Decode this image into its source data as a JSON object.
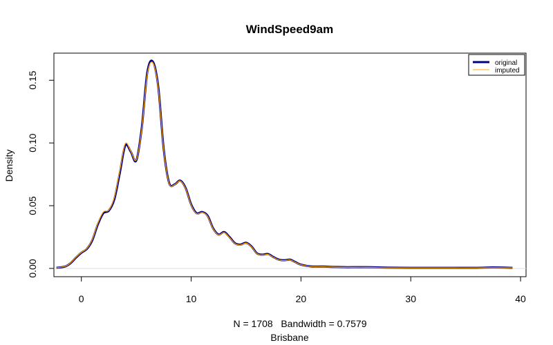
{
  "chart_data": {
    "type": "line",
    "title": "WindSpeed9am",
    "xlabel": "N = 1708   Bandwidth = 0.7579",
    "subtitle": "Brisbane",
    "ylabel": "Density",
    "xlim": [
      -2.5,
      40.5
    ],
    "ylim": [
      -0.0066,
      0.1716
    ],
    "x_ticks": [
      0,
      10,
      20,
      30,
      40
    ],
    "y_ticks": [
      0.0,
      0.05,
      0.1,
      0.15
    ],
    "y_tick_labels": [
      "0.00",
      "0.05",
      "0.10",
      "0.15"
    ],
    "grid": false,
    "legend_position": "top-right",
    "colors": {
      "original": "#000080",
      "imputed": "#ffa500"
    },
    "series": [
      {
        "name": "original",
        "x": [
          -2.27,
          -1.5,
          -1.0,
          -0.5,
          0.0,
          0.5,
          1.0,
          1.5,
          2.0,
          2.5,
          3.0,
          3.5,
          4.0,
          4.5,
          5.0,
          5.5,
          6.0,
          6.5,
          7.0,
          7.5,
          8.0,
          8.5,
          9.0,
          9.5,
          10.0,
          10.5,
          11.0,
          11.5,
          12.0,
          12.5,
          13.0,
          13.5,
          14.0,
          14.5,
          15.0,
          15.5,
          16.0,
          16.5,
          17.0,
          17.5,
          18.0,
          18.5,
          19.0,
          19.5,
          20.0,
          21.0,
          22.0,
          23.0,
          24.0,
          26.0,
          28.0,
          30.0,
          32.0,
          34.0,
          36.0,
          37.5,
          39.27
        ],
        "y": [
          0.0005,
          0.0015,
          0.004,
          0.0085,
          0.0125,
          0.0155,
          0.0225,
          0.035,
          0.044,
          0.046,
          0.055,
          0.076,
          0.098,
          0.093,
          0.086,
          0.112,
          0.156,
          0.165,
          0.145,
          0.095,
          0.068,
          0.067,
          0.07,
          0.064,
          0.051,
          0.044,
          0.045,
          0.042,
          0.032,
          0.027,
          0.029,
          0.025,
          0.02,
          0.019,
          0.0205,
          0.0175,
          0.012,
          0.011,
          0.0115,
          0.009,
          0.007,
          0.0065,
          0.007,
          0.005,
          0.003,
          0.0015,
          0.0015,
          0.0012,
          0.001,
          0.001,
          0.0006,
          0.0005,
          0.0005,
          0.0005,
          0.0005,
          0.0008,
          0.0005
        ]
      },
      {
        "name": "imputed",
        "x": [
          -2.27,
          -1.5,
          -1.0,
          -0.5,
          0.0,
          0.5,
          1.0,
          1.5,
          2.0,
          2.5,
          3.0,
          3.5,
          4.0,
          4.5,
          5.0,
          5.5,
          6.0,
          6.5,
          7.0,
          7.5,
          8.0,
          8.5,
          9.0,
          9.5,
          10.0,
          10.5,
          11.0,
          11.5,
          12.0,
          12.5,
          13.0,
          13.5,
          14.0,
          14.5,
          15.0,
          15.5,
          16.0,
          16.5,
          17.0,
          17.5,
          18.0,
          18.5,
          19.0,
          19.5,
          20.0,
          21.0,
          22.0,
          23.0,
          24.0,
          26.0,
          28.0,
          30.0,
          32.0,
          34.0,
          36.0,
          37.5,
          39.27
        ],
        "y": [
          0.0005,
          0.0016,
          0.0042,
          0.0088,
          0.0128,
          0.0158,
          0.0232,
          0.036,
          0.045,
          0.0465,
          0.0565,
          0.078,
          0.0995,
          0.0935,
          0.0865,
          0.111,
          0.1545,
          0.164,
          0.144,
          0.0945,
          0.0676,
          0.0668,
          0.0697,
          0.0636,
          0.0505,
          0.0436,
          0.0447,
          0.0415,
          0.0316,
          0.0267,
          0.0286,
          0.0246,
          0.0197,
          0.0187,
          0.0202,
          0.0172,
          0.0118,
          0.0108,
          0.0112,
          0.0088,
          0.0068,
          0.0063,
          0.0068,
          0.0048,
          0.0029,
          0.0014,
          0.0014,
          0.0011,
          0.0009,
          0.0009,
          0.0005,
          0.0004,
          0.0004,
          0.0004,
          0.0004,
          0.0007,
          0.0004
        ]
      }
    ]
  }
}
